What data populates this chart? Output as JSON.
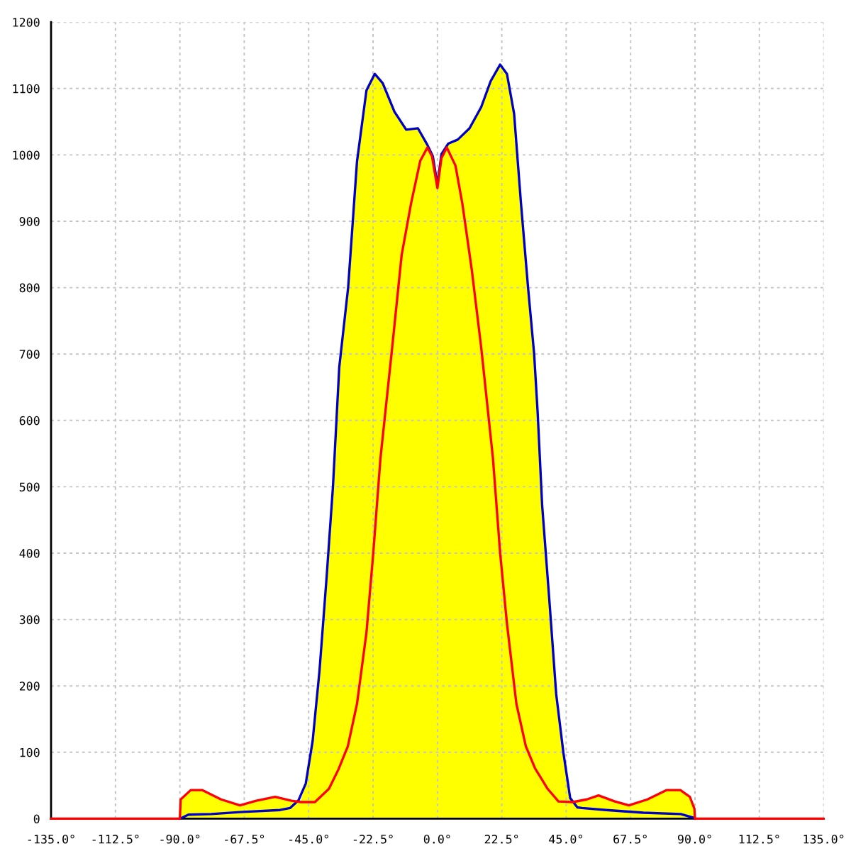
{
  "chart_data": {
    "type": "line",
    "xlim": [
      -135,
      135
    ],
    "ylim": [
      0,
      1200
    ],
    "xticks": [
      {
        "value": -135,
        "label": "-135.0°"
      },
      {
        "value": -112.5,
        "label": "-112.5°"
      },
      {
        "value": -90,
        "label": "-90.0°"
      },
      {
        "value": -67.5,
        "label": "-67.5°"
      },
      {
        "value": -45,
        "label": "-45.0°"
      },
      {
        "value": -22.5,
        "label": "-22.5°"
      },
      {
        "value": 0,
        "label": "0.0°"
      },
      {
        "value": 22.5,
        "label": "22.5°"
      },
      {
        "value": 45,
        "label": "45.0°"
      },
      {
        "value": 67.5,
        "label": "67.5°"
      },
      {
        "value": 90,
        "label": "90.0°"
      },
      {
        "value": 112.5,
        "label": "112.5°"
      },
      {
        "value": 135,
        "label": "135.0°"
      }
    ],
    "yticks": [
      0,
      100,
      200,
      300,
      400,
      500,
      600,
      700,
      800,
      900,
      1000,
      1100,
      1200
    ],
    "grid": true,
    "series": [
      {
        "type": "area",
        "color": "#ffff00",
        "x": [
          -90,
          -89.7,
          -86.2,
          -82.1,
          -75.6,
          -69,
          -63.3,
          -56.7,
          -51,
          -47.7
        ],
        "values": [
          0,
          29,
          43,
          43,
          29,
          20,
          27,
          33,
          27,
          25
        ]
      },
      {
        "type": "area",
        "color": "#ffff00",
        "x": [
          -47.7,
          -46,
          -43.6,
          -41.2,
          -38.7,
          -36.5,
          -34.3,
          -31.2,
          -28.1,
          -24.8,
          -21.9,
          -19.1,
          -15,
          -10.9,
          -6.8,
          -3.5,
          -1.6,
          0,
          1.4,
          3.8,
          7.1,
          11.2,
          15.3,
          18.6,
          21.9,
          24.3,
          26.8,
          29.2,
          31.7,
          33.8,
          35,
          36.6,
          39.1,
          41.5,
          44,
          46.4,
          47.3
        ],
        "values": [
          25,
          53,
          117,
          223,
          365,
          500,
          680,
          800,
          990,
          1097,
          1122,
          1108,
          1065,
          1038,
          1040,
          1015,
          998,
          955,
          1001,
          1017,
          1023,
          1040,
          1072,
          1111,
          1136,
          1122,
          1062,
          927,
          799,
          700,
          614,
          472,
          330,
          188,
          100,
          31,
          25
        ]
      },
      {
        "type": "area",
        "color": "#ffff00",
        "x": [
          47.3,
          52.2,
          56.3,
          62,
          66.9,
          73.4,
          80,
          84.9,
          88.2,
          89.8,
          90
        ],
        "values": [
          25,
          29,
          35,
          26,
          20,
          29,
          43,
          43,
          33,
          15,
          0
        ]
      },
      {
        "color": "#0000cc",
        "x": [
          -90,
          -87,
          -79,
          -69,
          -55,
          -51.5,
          -48.5,
          -46,
          -43.6,
          -41.2,
          -38.7,
          -36.5,
          -34.3,
          -31.2,
          -28.1,
          -24.8,
          -21.9,
          -19.1,
          -15,
          -10.9,
          -6.8,
          -3.5,
          -1.6,
          0,
          1.4,
          3.8,
          7.1,
          11.2,
          15.3,
          18.6,
          21.9,
          24.3,
          26.8,
          29.2,
          31.7,
          33.8,
          35,
          36.6,
          39.1,
          41.5,
          44,
          46.4,
          48.9,
          50.5,
          59,
          72,
          85,
          89.8,
          90
        ],
        "values": [
          0,
          6,
          7,
          10,
          13,
          16,
          28,
          53,
          117,
          223,
          365,
          500,
          680,
          800,
          990,
          1097,
          1122,
          1108,
          1065,
          1038,
          1040,
          1015,
          998,
          955,
          1001,
          1017,
          1023,
          1040,
          1072,
          1111,
          1136,
          1122,
          1062,
          927,
          799,
          700,
          614,
          472,
          330,
          188,
          100,
          31,
          17,
          16,
          13,
          9,
          7,
          1,
          0
        ]
      },
      {
        "color": "#ff0000",
        "x": [
          -135,
          -90,
          -89.7,
          -86.2,
          -82.1,
          -75.6,
          -69,
          -63.3,
          -56.7,
          -51,
          -47.7,
          -42.8,
          -37.9,
          -34.6,
          -31.3,
          -28.1,
          -24.8,
          -22.4,
          -19.9,
          -15.8,
          -12.5,
          -9.2,
          -6,
          -3.5,
          -1.9,
          0,
          1.4,
          3.3,
          6.3,
          8.7,
          12,
          15.3,
          19.4,
          21.9,
          24.3,
          27.6,
          30.9,
          34.1,
          38.5,
          42.3,
          47.3,
          52.2,
          56.3,
          62,
          66.9,
          73.4,
          80,
          84.9,
          88.2,
          89.8,
          90,
          135
        ],
        "values": [
          0,
          0,
          29,
          43,
          43,
          29,
          20,
          27,
          33,
          27,
          25,
          25,
          45,
          74,
          109,
          173,
          280,
          401,
          543,
          710,
          849,
          927,
          991,
          1011,
          998,
          950,
          995,
          1011,
          984,
          927,
          827,
          710,
          543,
          401,
          294,
          173,
          109,
          76,
          45,
          26,
          25,
          29,
          35,
          26,
          20,
          29,
          43,
          43,
          33,
          15,
          0,
          0
        ]
      }
    ]
  }
}
